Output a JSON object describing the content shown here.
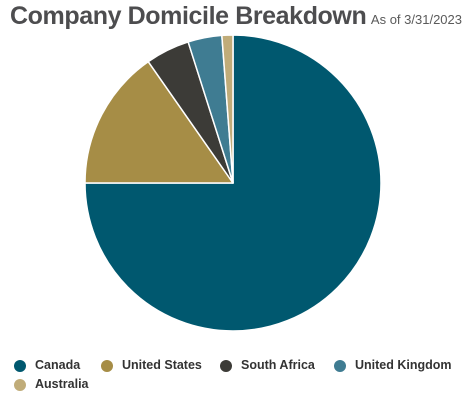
{
  "header": {
    "title": "Company Domicile Breakdown",
    "as_of": "As of 3/31/2023"
  },
  "chart_data": {
    "type": "pie",
    "title": "Company Domicile Breakdown",
    "subtitle": "As of 3/31/2023",
    "legend_placement": "bottom",
    "start_angle_deg": 0,
    "direction": "clockwise",
    "slices": [
      {
        "name": "Canada",
        "value": 75.0,
        "color": "#00586f"
      },
      {
        "name": "United States",
        "value": 15.3,
        "color": "#a68d46"
      },
      {
        "name": "South Africa",
        "value": 4.8,
        "color": "#3c3b37"
      },
      {
        "name": "United Kingdom",
        "value": 3.7,
        "color": "#3f7c92"
      },
      {
        "name": "Australia",
        "value": 1.2,
        "color": "#c0ac79"
      }
    ]
  },
  "legend": {
    "items": [
      {
        "label": "Canada",
        "color": "#00586f"
      },
      {
        "label": "United States",
        "color": "#a68d46"
      },
      {
        "label": "South Africa",
        "color": "#3c3b37"
      },
      {
        "label": "United Kingdom",
        "color": "#3f7c92"
      },
      {
        "label": "Australia",
        "color": "#c0ac79"
      }
    ]
  }
}
